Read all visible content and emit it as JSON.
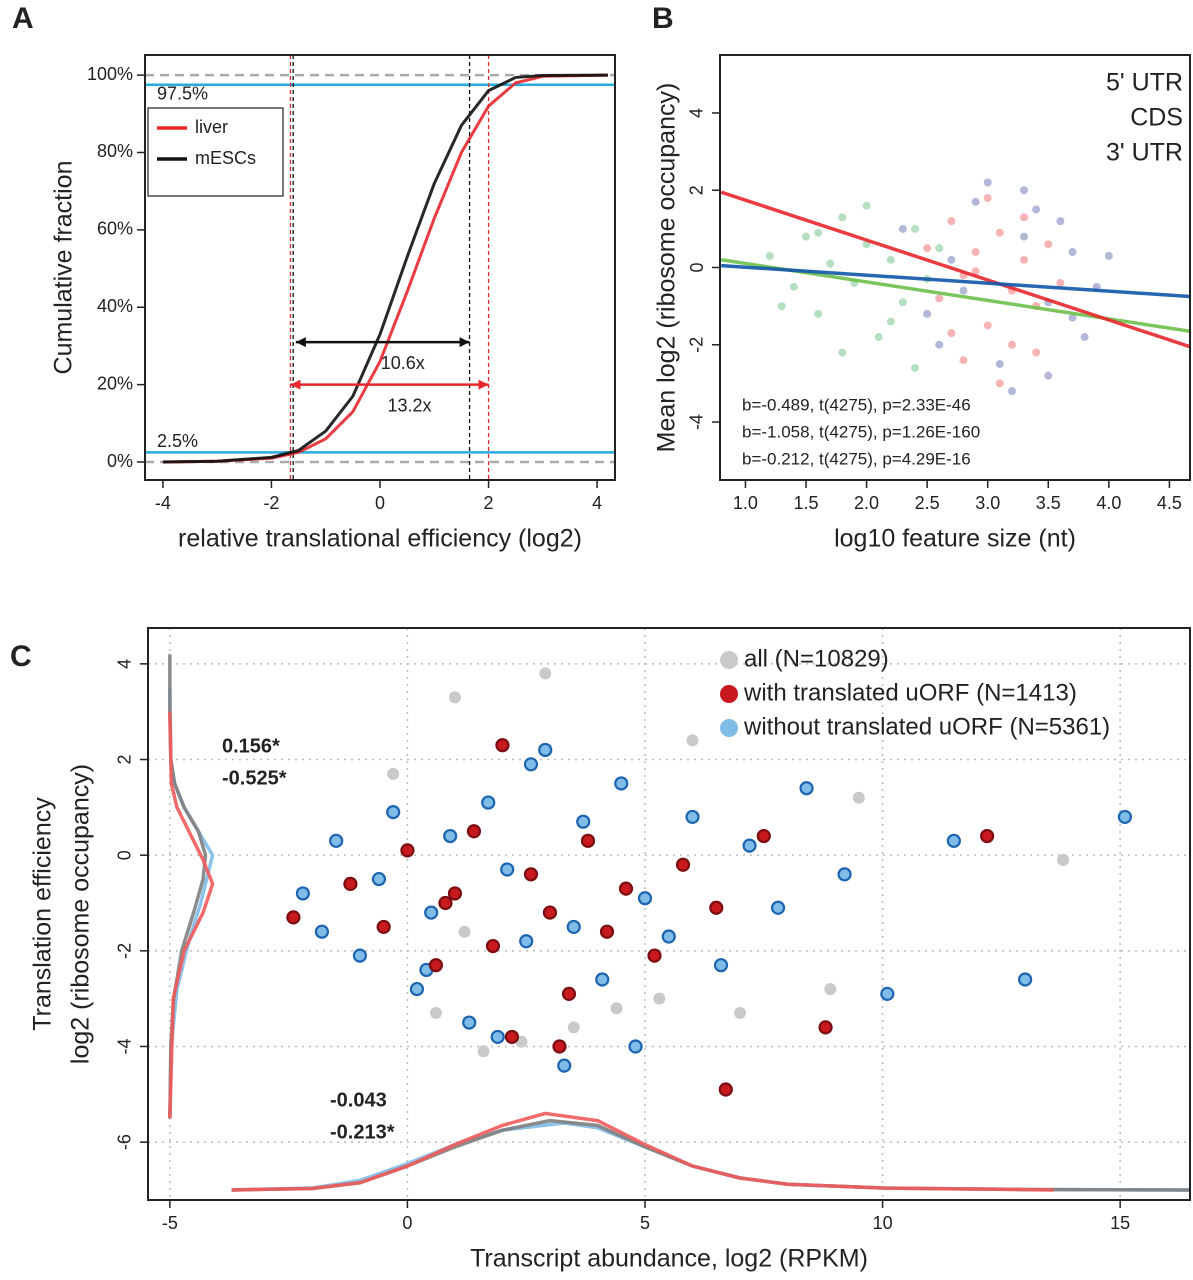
{
  "chart_data": [
    {
      "type": "line",
      "label": "A",
      "xlabel": "relative translational efficiency (log2)",
      "ylabel": "Cumulative fraction",
      "xlim": [
        -4.33,
        4.33
      ],
      "ylim": [
        -4.65,
        105.2
      ],
      "xticks": [
        -4,
        -2,
        0,
        2,
        4
      ],
      "yticks": [
        {
          "value": 0,
          "label": "0%"
        },
        {
          "value": 20,
          "label": "20%"
        },
        {
          "value": 40,
          "label": "40%"
        },
        {
          "value": 60,
          "label": "60%"
        },
        {
          "value": 80,
          "label": "80%"
        },
        {
          "value": 100,
          "label": "100%"
        }
      ],
      "series": [
        {
          "name": "liver",
          "color": "#e8262b",
          "x": [
            -4,
            -3,
            -2,
            -1.5,
            -1,
            -0.5,
            0,
            0.5,
            1,
            1.5,
            2,
            2.5,
            3,
            4.2
          ],
          "values": [
            0,
            0.2,
            1,
            2.5,
            6,
            13,
            26,
            44,
            63,
            80,
            92,
            98,
            99.7,
            100
          ]
        },
        {
          "name": "mESCs",
          "color": "#111111",
          "x": [
            -4,
            -3,
            -2,
            -1.5,
            -1,
            -0.5,
            0,
            0.5,
            1,
            1.5,
            2,
            2.5,
            3,
            4.2
          ],
          "values": [
            0,
            0.2,
            1.2,
            3,
            8,
            17,
            33,
            53,
            72,
            87,
            96,
            99.4,
            99.9,
            100
          ]
        }
      ],
      "hlines": [
        {
          "value": 100,
          "color": "#aaaaaa",
          "dashed": true
        },
        {
          "value": 0,
          "color": "#aaaaaa",
          "dashed": true
        },
        {
          "value": 97.5,
          "label": "97.5%",
          "color": "#29abe2"
        },
        {
          "value": 2.5,
          "label": "2.5%",
          "color": "#29abe2"
        }
      ],
      "vlines": [
        {
          "value": -1.6,
          "color": "#111111"
        },
        {
          "value": 1.65,
          "color": "#111111"
        },
        {
          "value": -1.65,
          "color": "#e8262b"
        },
        {
          "value": 2.0,
          "color": "#e8262b"
        }
      ],
      "arrows": [
        {
          "from": -1.55,
          "to": 1.65,
          "y": 31,
          "label": "10.6x",
          "color": "#111111"
        },
        {
          "from": -1.65,
          "to": 2.0,
          "y": 20,
          "label": "13.2x",
          "color": "#e8262b"
        }
      ]
    },
    {
      "type": "scatter",
      "label": "B",
      "xlabel": "log10 feature size (nt)",
      "ylabel": "Mean log2 (ribosome occupancy)",
      "xlim": [
        0.79,
        4.67
      ],
      "ylim": [
        -5.5,
        5.5
      ],
      "xticks": [
        {
          "value": 1,
          "label": "1.0"
        },
        1.5,
        {
          "value": 2,
          "label": "2.0"
        },
        2.5,
        {
          "value": 3,
          "label": "3.0"
        },
        3.5,
        {
          "value": 4,
          "label": "4.0"
        },
        4.5
      ],
      "yticks": [
        -4,
        -2,
        0,
        2,
        4
      ],
      "series": [
        {
          "name": "5' UTR",
          "color": "#2ca24a",
          "x": [
            1.2,
            1.4,
            1.5,
            1.6,
            1.7,
            1.8,
            1.9,
            2.0,
            2.1,
            2.2,
            2.3,
            2.4,
            2.5,
            2.6,
            1.3,
            1.8,
            2.0,
            2.2,
            1.6,
            2.4
          ],
          "values": [
            0.3,
            -0.5,
            0.8,
            -1.2,
            0.1,
            1.3,
            -0.4,
            0.6,
            -1.8,
            0.2,
            -0.9,
            1.0,
            -0.3,
            0.5,
            -1.0,
            -2.2,
            1.6,
            -1.4,
            0.9,
            -2.6
          ]
        },
        {
          "name": "CDS",
          "color": "#e8262b",
          "x": [
            2.5,
            2.6,
            2.7,
            2.8,
            2.9,
            3.0,
            3.1,
            3.2,
            3.3,
            3.4,
            3.5,
            3.6,
            2.8,
            3.0,
            3.2,
            2.7,
            3.1,
            3.3,
            2.9,
            3.4
          ],
          "values": [
            0.5,
            -0.8,
            1.2,
            -0.2,
            0.4,
            -1.5,
            0.9,
            -0.6,
            0.2,
            -1.0,
            0.6,
            -0.4,
            -2.4,
            1.8,
            -2.0,
            -1.7,
            -3.0,
            1.3,
            -0.1,
            -2.2
          ]
        },
        {
          "name": "3' UTR",
          "color": "#27358f",
          "x": [
            2.3,
            2.5,
            2.7,
            2.9,
            3.1,
            3.3,
            3.5,
            3.7,
            3.9,
            2.6,
            3.0,
            3.4,
            3.8,
            3.2,
            3.6,
            2.8,
            3.5,
            4.0,
            3.3,
            3.7
          ],
          "values": [
            1.0,
            -1.2,
            0.2,
            1.7,
            -2.5,
            0.8,
            -0.9,
            0.4,
            -0.5,
            -2.0,
            2.2,
            1.5,
            -1.8,
            -3.2,
            1.2,
            -0.6,
            -2.8,
            0.3,
            2.0,
            -1.3
          ]
        }
      ],
      "lines": [
        {
          "color": "#6cc04a",
          "x": [
            0.8,
            4.67
          ],
          "values": [
            0.2,
            -1.65
          ]
        },
        {
          "color": "#e8262b",
          "x": [
            0.8,
            4.67
          ],
          "values": [
            1.95,
            -2.05
          ]
        },
        {
          "color": "#0f56a8",
          "x": [
            0.8,
            4.67
          ],
          "values": [
            0.05,
            -0.75
          ]
        }
      ],
      "annotations": [
        {
          "text": "b=-0.489, t(4275), p=2.33E-46",
          "color": "#2ca24a"
        },
        {
          "text": "b=-1.058, t(4275), p=1.26E-160",
          "color": "#e8262b"
        },
        {
          "text": "b=-0.212, t(4275), p=4.29E-16",
          "color": "#27358f"
        }
      ]
    },
    {
      "type": "scatter",
      "label": "C",
      "xlabel": "Transcript abundance, log2 (RPKM)",
      "ylabel": [
        "Translation efficiency",
        "log2 (ribosome occupancy)"
      ],
      "xlim": [
        -5.46,
        16.47
      ],
      "ylim": [
        -7.21,
        4.75
      ],
      "xticks": [
        -5,
        0,
        5,
        10,
        15
      ],
      "yticks": [
        -6,
        -4,
        -2,
        0,
        2,
        4
      ],
      "grid": true,
      "series": [
        {
          "name": "all (N=10829)",
          "color": "#c9c9c9",
          "x": [
            0.6,
            1.0,
            1.6,
            2.4,
            2.9,
            3.5,
            4.4,
            5.3,
            6.0,
            8.9,
            9.5,
            13.8,
            -0.3,
            7.0,
            1.2
          ],
          "values": [
            -3.3,
            3.3,
            -4.1,
            -3.9,
            3.8,
            -3.6,
            -3.2,
            -3.0,
            2.4,
            -2.8,
            1.2,
            -0.1,
            1.7,
            -3.3,
            -1.6
          ]
        },
        {
          "name": "with translated uORF (N=1413)",
          "color": "#c8191f",
          "x": [
            -2.4,
            -1.2,
            -0.5,
            0.0,
            0.6,
            1.0,
            1.4,
            1.8,
            2.2,
            2.6,
            3.0,
            3.4,
            3.8,
            4.2,
            4.6,
            5.2,
            5.8,
            6.5,
            7.5,
            8.8,
            12.2,
            2.0,
            3.2,
            6.7,
            0.8
          ],
          "values": [
            -1.3,
            -0.6,
            -1.5,
            0.1,
            -2.3,
            -0.8,
            0.5,
            -1.9,
            -3.8,
            -0.4,
            -1.2,
            -2.9,
            0.3,
            -1.6,
            -0.7,
            -2.1,
            -0.2,
            -1.1,
            0.4,
            -3.6,
            0.4,
            2.3,
            -4.0,
            -4.9,
            -1.0
          ]
        },
        {
          "name": "without translated uORF (N=5361)",
          "color": "#7fbde8",
          "x": [
            -2.2,
            -1.8,
            -1.5,
            -1.0,
            -0.6,
            -0.3,
            0.2,
            0.5,
            0.9,
            1.3,
            1.7,
            2.1,
            2.5,
            2.9,
            3.3,
            3.7,
            4.1,
            4.5,
            5.0,
            5.5,
            6.0,
            6.6,
            7.2,
            7.8,
            8.4,
            9.2,
            10.1,
            11.5,
            13.0,
            15.1,
            1.9,
            2.6,
            3.5,
            4.8,
            0.4
          ],
          "values": [
            -0.8,
            -1.6,
            0.3,
            -2.1,
            -0.5,
            0.9,
            -2.8,
            -1.2,
            0.4,
            -3.5,
            1.1,
            -0.3,
            -1.8,
            2.2,
            -4.4,
            0.7,
            -2.6,
            1.5,
            -0.9,
            -1.7,
            0.8,
            -2.3,
            0.2,
            -1.1,
            1.4,
            -0.4,
            -2.9,
            0.3,
            -2.6,
            0.8,
            -3.8,
            1.9,
            -1.5,
            -4.0,
            -2.4
          ]
        }
      ],
      "lines": [
        {
          "color": "#7fbde8",
          "x": [
            -5,
            -4.98,
            -4.9,
            -4.7,
            -4.4,
            -4.1,
            -4.35,
            -4.6,
            -4.85,
            -4.97,
            -5
          ],
          "values": [
            3.5,
            2,
            1.5,
            1.0,
            0.5,
            0,
            -1.0,
            -1.8,
            -2.8,
            -4,
            -5.5
          ]
        },
        {
          "color": "#808080",
          "x": [
            -5,
            -5,
            -4.98,
            -4.9,
            -4.7,
            -4.4,
            -4.25,
            -4.3,
            -4.5,
            -4.75,
            -4.92,
            -4.98,
            -5
          ],
          "values": [
            4.2,
            3,
            2,
            1.5,
            1.0,
            0.5,
            0,
            -0.5,
            -1.2,
            -2,
            -3,
            -4,
            -5.5
          ]
        },
        {
          "color": "#ef5b5b",
          "x": [
            -5,
            -4.97,
            -4.85,
            -4.6,
            -4.3,
            -4.1,
            -4.3,
            -4.7,
            -4.93,
            -5
          ],
          "values": [
            3,
            1.5,
            1,
            0.5,
            -0.1,
            -0.6,
            -1.2,
            -2,
            -3,
            -5.5
          ]
        },
        {
          "color": "#7fbde8",
          "x": [
            -3.7,
            -2,
            -1,
            0,
            1,
            2,
            3.3,
            4,
            5,
            6,
            7,
            8,
            10,
            13,
            16.5
          ],
          "values": [
            -7,
            -6.96,
            -6.8,
            -6.45,
            -6.05,
            -5.75,
            -5.6,
            -5.7,
            -6.1,
            -6.5,
            -6.75,
            -6.88,
            -6.96,
            -6.99,
            -7
          ]
        },
        {
          "color": "#808080",
          "x": [
            -3.7,
            -2,
            -1,
            0,
            1,
            2,
            3,
            4,
            5,
            6,
            7,
            8,
            10,
            13,
            16.5
          ],
          "values": [
            -7,
            -6.97,
            -6.85,
            -6.5,
            -6.1,
            -5.75,
            -5.55,
            -5.65,
            -6.1,
            -6.5,
            -6.75,
            -6.88,
            -6.96,
            -6.99,
            -7
          ]
        },
        {
          "color": "#ef5b5b",
          "x": [
            -3.7,
            -2,
            -1,
            0,
            1,
            2,
            2.9,
            4,
            5,
            6,
            7,
            8,
            10,
            13.6
          ],
          "values": [
            -7,
            -6.97,
            -6.85,
            -6.5,
            -6.05,
            -5.65,
            -5.4,
            -5.55,
            -6.05,
            -6.5,
            -6.75,
            -6.88,
            -6.96,
            -7
          ]
        }
      ],
      "annotations": [
        {
          "text": "0.156*",
          "color": "#7fbde8"
        },
        {
          "text": "-0.525*",
          "color": "#e8262b"
        },
        {
          "text": "-0.043",
          "color": "#7fbde8"
        },
        {
          "text": "-0.213*",
          "color": "#e8262b"
        }
      ]
    }
  ]
}
